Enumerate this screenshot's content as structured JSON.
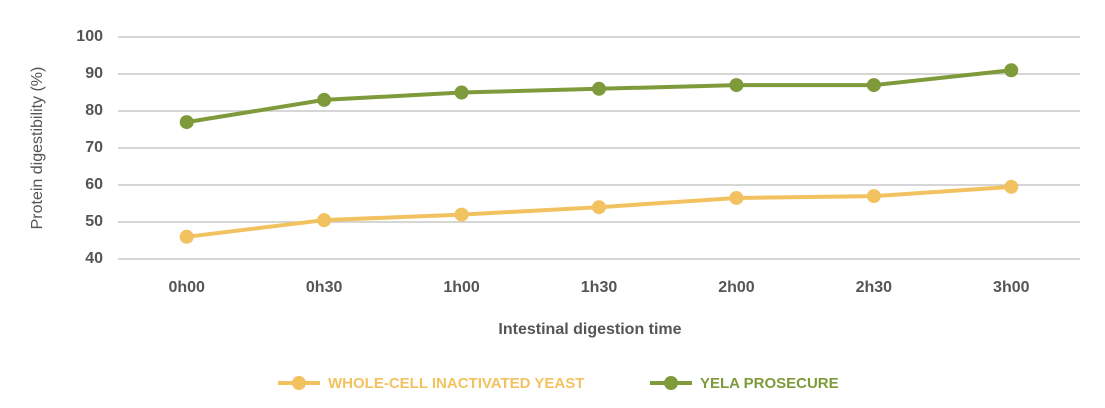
{
  "chart_data": {
    "type": "line",
    "x_label": "Intestinal digestion time",
    "y_label": "Protein digestibility (%)",
    "categories": [
      "0h00",
      "0h30",
      "1h00",
      "1h30",
      "2h00",
      "2h30",
      "3h00"
    ],
    "series": [
      {
        "name": "WHOLE-CELL INACTIVATED YEAST",
        "color": "#f2c260",
        "values": [
          46,
          50.5,
          52,
          54,
          56.5,
          57,
          59.5
        ]
      },
      {
        "name": "YELA PROSECURE",
        "color": "#7f9a3a",
        "values": [
          77,
          83,
          85,
          86,
          87,
          87,
          91
        ]
      }
    ],
    "ylim": [
      40,
      100
    ],
    "yticks": [
      40,
      50,
      60,
      70,
      80,
      90,
      100
    ],
    "grid": true
  }
}
